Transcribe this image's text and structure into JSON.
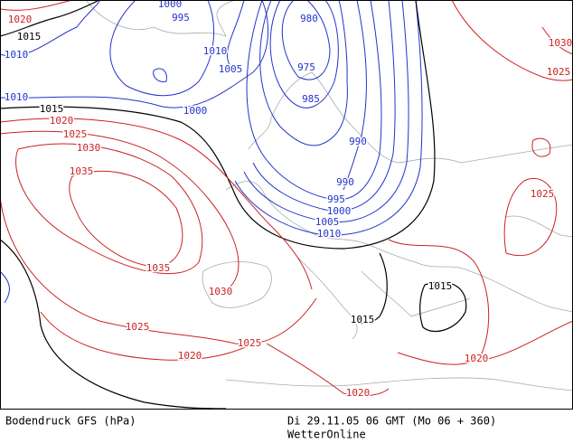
{
  "map": {
    "isobar_labels": [
      1020,
      1015,
      1010,
      1000,
      995,
      1010,
      1005,
      980,
      975,
      985,
      1000,
      1010,
      1015,
      1020,
      1025,
      1030,
      1035,
      990,
      990,
      995,
      1000,
      1005,
      1010,
      1035,
      1030,
      1025,
      1025,
      1020,
      1020,
      1015,
      1015,
      1025,
      1025,
      1030,
      1020
    ]
  },
  "footer": {
    "product": "Bodendruck GFS (hPa)",
    "time": "Di 29.11.05 06 GMT (Mo 06 + 360)",
    "source": "WetterOnline"
  }
}
